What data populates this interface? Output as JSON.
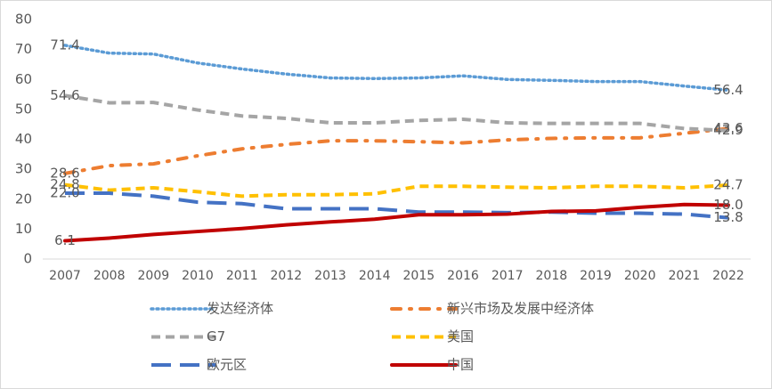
{
  "chart_data": {
    "type": "line",
    "categories": [
      "2007",
      "2008",
      "2009",
      "2010",
      "2011",
      "2012",
      "2013",
      "2014",
      "2015",
      "2016",
      "2017",
      "2018",
      "2019",
      "2020",
      "2021",
      "2022"
    ],
    "ylim": [
      0,
      80
    ],
    "yticks": [
      0,
      10,
      20,
      30,
      40,
      50,
      60,
      70,
      80
    ],
    "grid": false,
    "series": [
      {
        "name": "发达经济体",
        "color": "#5b9bd5",
        "dash": "dotted",
        "values": [
          71.4,
          68.8,
          68.5,
          65.5,
          63.5,
          61.8,
          60.5,
          60.3,
          60.5,
          61.2,
          60.0,
          59.7,
          59.3,
          59.3,
          57.8,
          56.4
        ],
        "value_labels": [
          "71.4",
          null,
          null,
          null,
          null,
          null,
          null,
          null,
          null,
          null,
          null,
          null,
          null,
          null,
          null,
          "56.4"
        ]
      },
      {
        "name": "新兴市场及发展中经济体",
        "color": "#ed7d31",
        "dash": "dashdot",
        "values": [
          28.6,
          31.2,
          31.8,
          34.5,
          36.8,
          38.3,
          39.5,
          39.5,
          39.2,
          38.8,
          39.8,
          40.3,
          40.5,
          40.5,
          42.0,
          43.6
        ],
        "value_labels": [
          "28.6",
          null,
          null,
          null,
          null,
          null,
          null,
          null,
          null,
          null,
          null,
          null,
          null,
          null,
          null,
          "43.6"
        ]
      },
      {
        "name": "G7",
        "color": "#a5a5a5",
        "dash": "dash",
        "values": [
          54.6,
          52.2,
          52.3,
          49.8,
          47.8,
          47.0,
          45.5,
          45.5,
          46.3,
          46.7,
          45.5,
          45.3,
          45.3,
          45.3,
          43.6,
          42.9
        ],
        "value_labels": [
          "54.6",
          null,
          null,
          null,
          null,
          null,
          null,
          null,
          null,
          null,
          null,
          null,
          null,
          null,
          null,
          "42.9"
        ]
      },
      {
        "name": "美国",
        "color": "#ffc000",
        "dash": "dash",
        "values": [
          24.8,
          23.0,
          23.8,
          22.5,
          21.0,
          21.5,
          21.5,
          21.8,
          24.3,
          24.3,
          24.0,
          23.8,
          24.3,
          24.3,
          23.8,
          24.7
        ],
        "value_labels": [
          "24.8",
          null,
          null,
          null,
          null,
          null,
          null,
          null,
          null,
          null,
          null,
          null,
          null,
          null,
          null,
          "24.7"
        ]
      },
      {
        "name": "欧元区",
        "color": "#4472c4",
        "dash": "longdash",
        "values": [
          22.0,
          22.0,
          21.0,
          19.0,
          18.5,
          16.8,
          16.8,
          16.8,
          15.7,
          15.7,
          15.5,
          15.7,
          15.3,
          15.3,
          15.0,
          13.8
        ],
        "value_labels": [
          "22.0",
          null,
          null,
          null,
          null,
          null,
          null,
          null,
          null,
          null,
          null,
          null,
          null,
          null,
          null,
          "13.8"
        ]
      },
      {
        "name": "中国",
        "color": "#c00000",
        "dash": "solid",
        "values": [
          6.1,
          7.0,
          8.2,
          9.2,
          10.2,
          11.4,
          12.4,
          13.3,
          14.8,
          14.8,
          15.0,
          15.9,
          16.1,
          17.3,
          18.2,
          18.0
        ],
        "value_labels": [
          "6.1",
          null,
          null,
          null,
          null,
          null,
          null,
          null,
          null,
          null,
          null,
          null,
          null,
          null,
          null,
          "18.0"
        ]
      }
    ]
  }
}
